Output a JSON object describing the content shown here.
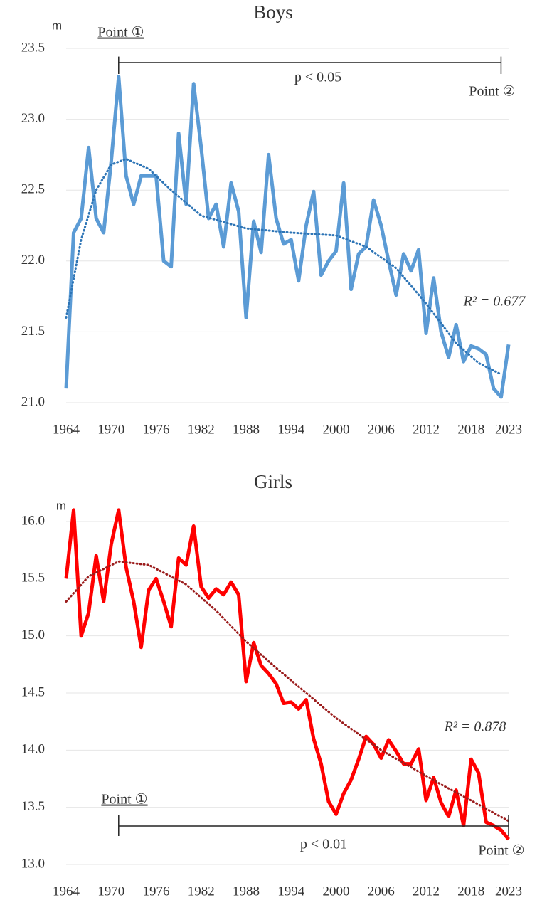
{
  "chart_data": [
    {
      "type": "line",
      "title": "Boys",
      "y_unit": "m",
      "x": [
        1964,
        1965,
        1966,
        1967,
        1968,
        1969,
        1970,
        1971,
        1972,
        1973,
        1974,
        1975,
        1976,
        1977,
        1978,
        1979,
        1980,
        1981,
        1982,
        1983,
        1984,
        1985,
        1986,
        1987,
        1988,
        1989,
        1990,
        1991,
        1992,
        1993,
        1994,
        1995,
        1996,
        1997,
        1998,
        1999,
        2000,
        2001,
        2002,
        2003,
        2004,
        2005,
        2006,
        2007,
        2008,
        2009,
        2010,
        2011,
        2012,
        2013,
        2014,
        2015,
        2016,
        2017,
        2018,
        2019,
        2020,
        2021,
        2022,
        2023
      ],
      "series": [
        {
          "color": "#5b9bd5",
          "values": [
            21.1,
            22.2,
            22.3,
            22.8,
            22.3,
            22.2,
            22.7,
            23.3,
            22.6,
            22.4,
            22.6,
            22.6,
            22.6,
            22.0,
            21.96,
            22.9,
            22.4,
            23.25,
            22.8,
            22.3,
            22.4,
            22.1,
            22.55,
            22.35,
            21.6,
            22.28,
            22.06,
            22.75,
            22.3,
            22.12,
            22.15,
            21.86,
            22.25,
            22.49,
            21.9,
            22.0,
            22.07,
            22.55,
            21.8,
            22.05,
            22.1,
            22.43,
            22.25,
            22.0,
            21.76,
            22.05,
            21.93,
            22.08,
            21.49,
            21.88,
            21.5,
            21.32,
            21.55,
            21.29,
            21.4,
            21.38,
            21.34,
            21.1,
            21.04,
            21.41
          ]
        }
      ],
      "trend": {
        "color": "#2e75b6",
        "x": [
          1964,
          1966,
          1968,
          1970,
          1972,
          1975,
          1978,
          1982,
          1988,
          1994,
          2000,
          2004,
          2008,
          2012,
          2016,
          2019,
          2022
        ],
        "values": [
          21.6,
          22.15,
          22.5,
          22.68,
          22.72,
          22.65,
          22.5,
          22.32,
          22.23,
          22.2,
          22.18,
          22.1,
          21.95,
          21.7,
          21.42,
          21.28,
          21.2
        ]
      },
      "xlim": [
        1964,
        2023
      ],
      "xticks": [
        1964,
        1970,
        1976,
        1982,
        1988,
        1994,
        2000,
        2006,
        2012,
        2018,
        2023
      ],
      "ylim": [
        21.0,
        23.5
      ],
      "yticks": [
        {
          "value": 21.0,
          "label": "21.0"
        },
        21.5,
        {
          "value": 22.0,
          "label": "22.0"
        },
        22.5,
        {
          "value": 23.0,
          "label": "23.0"
        },
        23.5
      ],
      "grid": true,
      "bracket": [
        1971,
        2022
      ],
      "annotations": {
        "point1": "Point ①",
        "point2": "Point ②",
        "p_value": "p < 0.05",
        "r2": "R² = 0.677"
      }
    },
    {
      "type": "line",
      "title": "Girls",
      "y_unit": "m",
      "x": [
        1964,
        1965,
        1966,
        1967,
        1968,
        1969,
        1970,
        1971,
        1972,
        1973,
        1974,
        1975,
        1976,
        1977,
        1978,
        1979,
        1980,
        1981,
        1982,
        1983,
        1984,
        1985,
        1986,
        1987,
        1988,
        1989,
        1990,
        1991,
        1992,
        1993,
        1994,
        1995,
        1996,
        1997,
        1998,
        1999,
        2000,
        2001,
        2002,
        2003,
        2004,
        2005,
        2006,
        2007,
        2008,
        2009,
        2010,
        2011,
        2012,
        2013,
        2014,
        2015,
        2016,
        2017,
        2018,
        2019,
        2020,
        2021,
        2022,
        2023
      ],
      "series": [
        {
          "color": "#ff0000",
          "values": [
            15.5,
            16.1,
            15.0,
            15.2,
            15.7,
            15.3,
            15.8,
            16.1,
            15.6,
            15.3,
            14.9,
            15.4,
            15.5,
            15.3,
            15.08,
            15.68,
            15.62,
            15.96,
            15.43,
            15.33,
            15.41,
            15.36,
            15.47,
            15.36,
            14.6,
            14.94,
            14.74,
            14.67,
            14.58,
            14.41,
            14.42,
            14.36,
            14.44,
            14.1,
            13.88,
            13.55,
            13.44,
            13.62,
            13.74,
            13.92,
            14.12,
            14.05,
            13.93,
            14.09,
            13.99,
            13.88,
            13.88,
            14.01,
            13.56,
            13.76,
            13.54,
            13.42,
            13.65,
            13.34,
            13.92,
            13.8,
            13.37,
            13.34,
            13.3,
            13.22
          ]
        }
      ],
      "trend": {
        "color": "#9b1c1c",
        "x": [
          1964,
          1967,
          1971,
          1975,
          1980,
          1984,
          1988,
          1992,
          1996,
          2000,
          2006,
          2010,
          2014,
          2018,
          2023
        ],
        "values": [
          15.3,
          15.52,
          15.65,
          15.62,
          15.45,
          15.22,
          14.95,
          14.72,
          14.5,
          14.28,
          14.0,
          13.85,
          13.7,
          13.56,
          13.38
        ]
      },
      "xlim": [
        1964,
        2023
      ],
      "xticks": [
        1964,
        1970,
        1976,
        1982,
        1988,
        1994,
        2000,
        2006,
        2012,
        2018,
        2023
      ],
      "ylim": [
        13.0,
        16.0
      ],
      "yticks": [
        {
          "value": 13.0,
          "label": "13.0"
        },
        13.5,
        {
          "value": 14.0,
          "label": "14.0"
        },
        14.5,
        {
          "value": 15.0,
          "label": "15.0"
        },
        15.5,
        {
          "value": 16.0,
          "label": "16.0"
        }
      ],
      "grid": true,
      "bracket": [
        1971,
        2023
      ],
      "annotations": {
        "point1": "Point ①",
        "point2": "Point ②",
        "p_value": "p < 0.01",
        "r2": "R² = 0.878"
      }
    }
  ]
}
